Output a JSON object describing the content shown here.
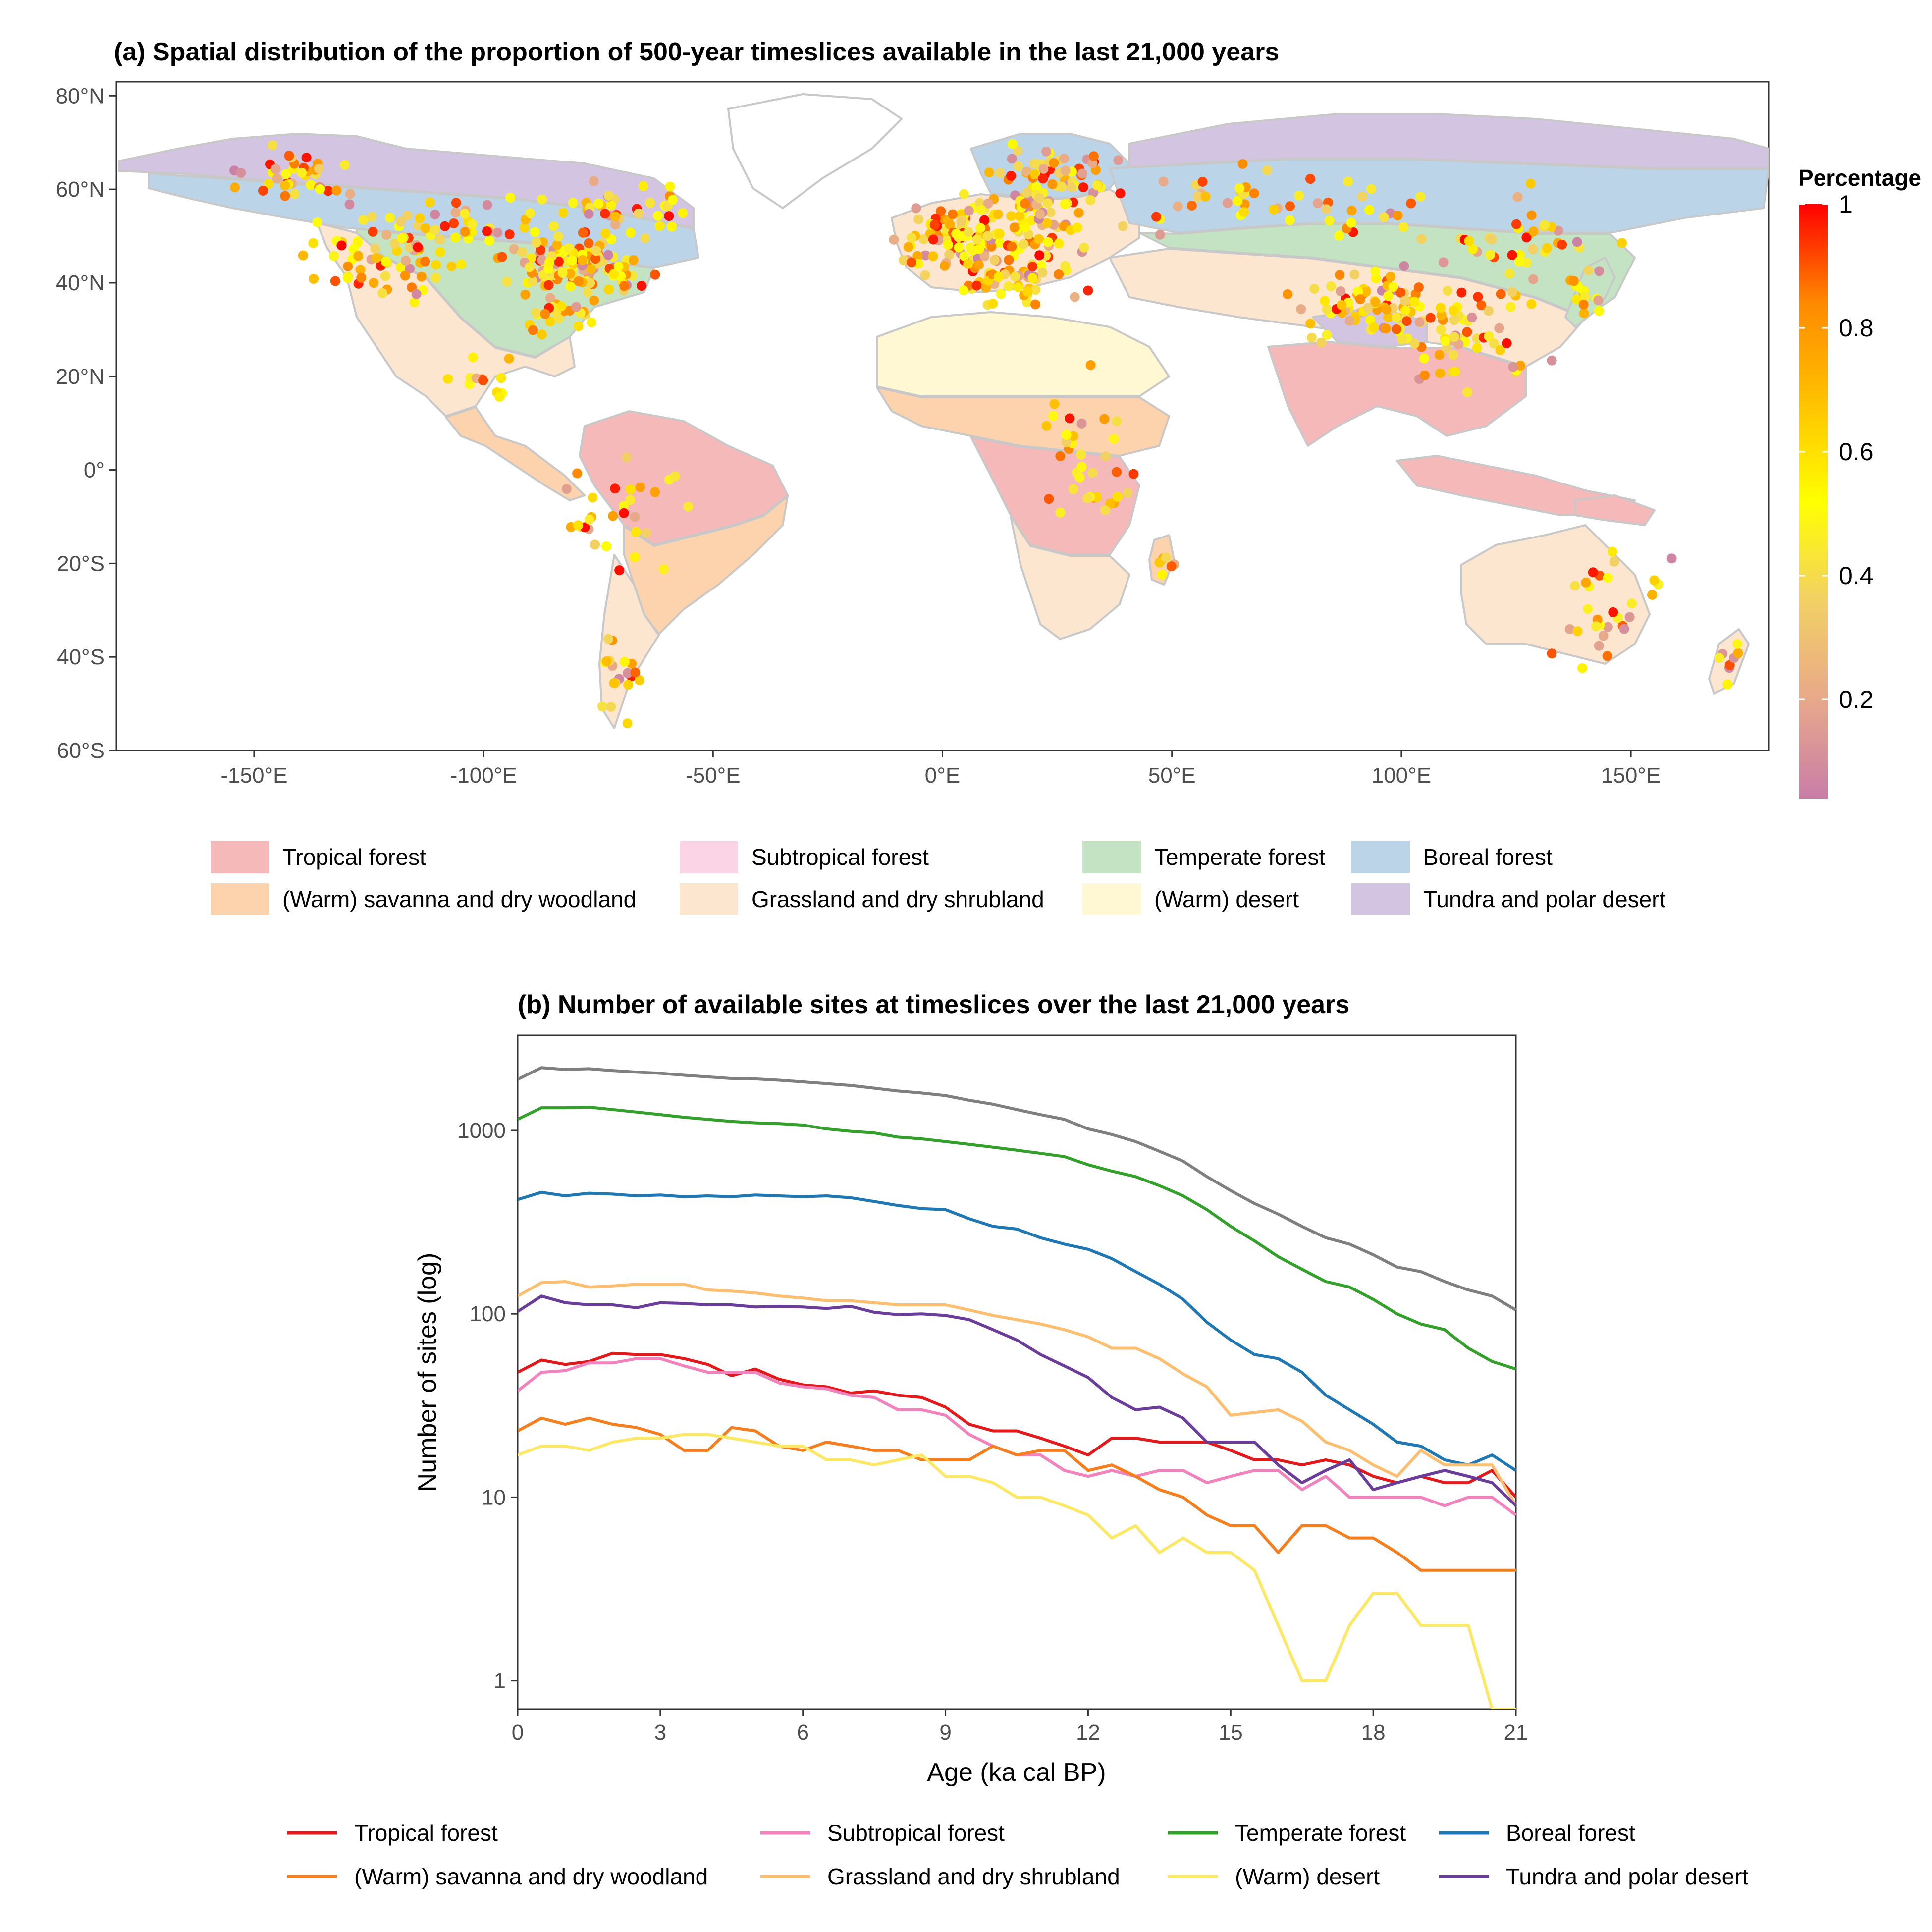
{
  "panel_a": {
    "title": "(a) Spatial distribution of the proportion of 500-year timeslices available in the last 21,000 years",
    "colorbar": {
      "title": "Percentage",
      "ticks": [
        {
          "value": 1,
          "label": "1"
        },
        {
          "value": 0.8,
          "label": "0.8"
        },
        {
          "value": 0.6,
          "label": "0.6"
        },
        {
          "value": 0.4,
          "label": "0.4"
        },
        {
          "value": 0.2,
          "label": "0.2"
        }
      ],
      "stops": [
        "#c97da7",
        "#e8a88a",
        "#f2d064",
        "#ffff00",
        "#ffc200",
        "#ff8a00",
        "#ff0000"
      ]
    },
    "legend": [
      {
        "label": "Tropical forest",
        "color": "#f6b9b9"
      },
      {
        "label": "Subtropical forest",
        "color": "#fbd4e6"
      },
      {
        "label": "Temperate forest",
        "color": "#c3e3c3"
      },
      {
        "label": "Boreal forest",
        "color": "#bcd4e8"
      },
      {
        "label": "(Warm) savanna and dry woodland",
        "color": "#fdd3ad"
      },
      {
        "label": "Grassland and dry shrubland",
        "color": "#fde6cf"
      },
      {
        "label": "(Warm) desert",
        "color": "#fff8d2"
      },
      {
        "label": "Tundra and polar desert",
        "color": "#d3c5e1"
      }
    ]
  },
  "chart_data": [
    {
      "type": "scatter",
      "title": "(a) Spatial distribution of the proportion of 500-year timeslices available in the last 21,000 years",
      "x_axis": {
        "range": [
          -180,
          180
        ],
        "ticks": [
          {
            "value": -150,
            "label": "-150°E"
          },
          {
            "value": -100,
            "label": "-100°E"
          },
          {
            "value": -50,
            "label": "-50°E"
          },
          {
            "value": 0,
            "label": "0°E"
          },
          {
            "value": 50,
            "label": "50°E"
          },
          {
            "value": 100,
            "label": "100°E"
          },
          {
            "value": 150,
            "label": "150°E"
          }
        ]
      },
      "y_axis": {
        "range": [
          -60,
          83
        ],
        "ticks": [
          {
            "value": 80,
            "label": "80°N"
          },
          {
            "value": 60,
            "label": "60°N"
          },
          {
            "value": 40,
            "label": "40°N"
          },
          {
            "value": 20,
            "label": "20°N"
          },
          {
            "value": 0,
            "label": "0°"
          },
          {
            "value": -20,
            "label": "20°S"
          },
          {
            "value": -40,
            "label": "40°S"
          },
          {
            "value": -60,
            "label": "60°S"
          }
        ]
      },
      "grid": false,
      "color_scale": "Percentage",
      "point_clusters": [
        {
          "lon": -120,
          "lat": 45,
          "sd": [
            12,
            6
          ],
          "n": 70
        },
        {
          "lon": -80,
          "lat": 44,
          "sd": [
            9,
            4
          ],
          "n": 120
        },
        {
          "lon": -140,
          "lat": 63,
          "sd": [
            10,
            4
          ],
          "n": 40
        },
        {
          "lon": -100,
          "lat": 52,
          "sd": [
            14,
            5
          ],
          "n": 40
        },
        {
          "lon": -70,
          "lat": 55,
          "sd": [
            10,
            5
          ],
          "n": 35
        },
        {
          "lon": -85,
          "lat": 33,
          "sd": [
            6,
            3
          ],
          "n": 25
        },
        {
          "lon": -100,
          "lat": 19,
          "sd": [
            6,
            3
          ],
          "n": 12
        },
        {
          "lon": -70,
          "lat": -10,
          "sd": [
            10,
            10
          ],
          "n": 30
        },
        {
          "lon": -70,
          "lat": -45,
          "sd": [
            3,
            6
          ],
          "n": 20
        },
        {
          "lon": 10,
          "lat": 50,
          "sd": [
            12,
            6
          ],
          "n": 180
        },
        {
          "lon": 25,
          "lat": 62,
          "sd": [
            10,
            5
          ],
          "n": 70
        },
        {
          "lon": 15,
          "lat": 40,
          "sd": [
            10,
            3
          ],
          "n": 40
        },
        {
          "lon": 70,
          "lat": 57,
          "sd": [
            25,
            5
          ],
          "n": 50
        },
        {
          "lon": 95,
          "lat": 35,
          "sd": [
            12,
            5
          ],
          "n": 80
        },
        {
          "lon": 115,
          "lat": 30,
          "sd": [
            10,
            8
          ],
          "n": 60
        },
        {
          "lon": 125,
          "lat": 50,
          "sd": [
            15,
            8
          ],
          "n": 40
        },
        {
          "lon": 140,
          "lat": 37,
          "sd": [
            4,
            4
          ],
          "n": 15
        },
        {
          "lon": 30,
          "lat": 0,
          "sd": [
            8,
            12
          ],
          "n": 35
        },
        {
          "lon": 145,
          "lat": -30,
          "sd": [
            8,
            8
          ],
          "n": 30
        },
        {
          "lon": 172,
          "lat": -42,
          "sd": [
            3,
            3
          ],
          "n": 8
        },
        {
          "lon": 48,
          "lat": -20,
          "sd": [
            2,
            3
          ],
          "n": 6
        }
      ]
    },
    {
      "type": "line",
      "title": "(b) Number of available sites at timeslices over the last 21,000 years",
      "xlabel": "Age (ka cal BP)",
      "ylabel": "Number of sites (log)",
      "xlim": [
        0,
        21
      ],
      "ylim": [
        0.7,
        3300
      ],
      "y_scale": "log",
      "x_ticks": [
        0,
        3,
        6,
        9,
        12,
        15,
        18,
        21
      ],
      "y_ticks": [
        {
          "value": 1,
          "label": "1"
        },
        {
          "value": 10,
          "label": "10"
        },
        {
          "value": 100,
          "label": "100"
        },
        {
          "value": 1000,
          "label": "1000"
        }
      ],
      "grid": false,
      "legend_position": "bottom",
      "x": [
        0,
        0.5,
        1,
        1.5,
        2,
        2.5,
        3,
        3.5,
        4,
        4.5,
        5,
        5.5,
        6,
        6.5,
        7,
        7.5,
        8,
        8.5,
        9,
        9.5,
        10,
        10.5,
        11,
        11.5,
        12,
        12.5,
        13,
        13.5,
        14,
        14.5,
        15,
        15.5,
        16,
        16.5,
        17,
        17.5,
        18,
        18.5,
        19,
        19.5,
        20,
        20.5,
        21
      ],
      "total": {
        "color": "#7f7f7f",
        "values": [
          1900,
          2200,
          2150,
          2170,
          2120,
          2080,
          2050,
          2000,
          1960,
          1920,
          1910,
          1880,
          1840,
          1800,
          1760,
          1700,
          1640,
          1600,
          1550,
          1460,
          1390,
          1300,
          1220,
          1150,
          1020,
          950,
          870,
          770,
          680,
          560,
          470,
          400,
          350,
          300,
          260,
          240,
          210,
          180,
          170,
          150,
          135,
          125,
          105
        ]
      },
      "series": [
        {
          "name": "Tropical forest",
          "color": "#e31a1c",
          "values": [
            48,
            56,
            53,
            55,
            61,
            60,
            60,
            57,
            53,
            46,
            50,
            44,
            41,
            40,
            37,
            38,
            36,
            35,
            31,
            25,
            23,
            23,
            21,
            19,
            17,
            21,
            21,
            20,
            20,
            20,
            18,
            16,
            16,
            15,
            16,
            15,
            13,
            12,
            13,
            12,
            12,
            14,
            10
          ]
        },
        {
          "name": "Subtropical forest",
          "color": "#f282bc",
          "values": [
            38,
            48,
            49,
            54,
            54,
            57,
            57,
            52,
            48,
            48,
            48,
            42,
            40,
            39,
            36,
            35,
            30,
            30,
            28,
            22,
            19,
            17,
            17,
            14,
            13,
            14,
            13,
            14,
            14,
            12,
            13,
            14,
            14,
            11,
            13,
            10,
            10,
            10,
            10,
            9,
            10,
            10,
            8
          ]
        },
        {
          "name": "Temperate forest",
          "color": "#33a02c",
          "values": [
            1150,
            1330,
            1330,
            1340,
            1300,
            1260,
            1220,
            1180,
            1150,
            1120,
            1100,
            1090,
            1070,
            1020,
            990,
            970,
            920,
            900,
            870,
            840,
            810,
            780,
            750,
            720,
            650,
            600,
            560,
            500,
            440,
            370,
            300,
            250,
            205,
            175,
            150,
            140,
            120,
            100,
            88,
            82,
            65,
            55,
            50
          ]
        },
        {
          "name": "Boreal forest",
          "color": "#1f78b4",
          "values": [
            420,
            460,
            440,
            455,
            450,
            440,
            445,
            435,
            440,
            435,
            445,
            440,
            435,
            440,
            430,
            410,
            390,
            375,
            370,
            330,
            300,
            290,
            260,
            240,
            225,
            200,
            170,
            145,
            120,
            90,
            72,
            60,
            57,
            48,
            36,
            30,
            25,
            20,
            19,
            16,
            15,
            17,
            14
          ]
        },
        {
          "name": "(Warm) savanna and dry woodland",
          "color": "#f57e1e",
          "values": [
            23,
            27,
            25,
            27,
            25,
            24,
            22,
            18,
            18,
            24,
            23,
            19,
            18,
            20,
            19,
            18,
            18,
            16,
            16,
            16,
            19,
            17,
            18,
            18,
            14,
            15,
            13,
            11,
            10,
            8,
            7,
            7,
            5,
            7,
            7,
            6,
            6,
            5,
            4,
            4,
            4,
            4,
            4
          ]
        },
        {
          "name": "Grassland and dry shrubland",
          "color": "#fdbf6f",
          "values": [
            125,
            148,
            150,
            140,
            142,
            145,
            145,
            145,
            135,
            133,
            130,
            125,
            122,
            118,
            118,
            115,
            112,
            112,
            112,
            105,
            98,
            93,
            88,
            82,
            75,
            65,
            65,
            57,
            47,
            40,
            28,
            29,
            30,
            26,
            20,
            18,
            15,
            13,
            18,
            15,
            15,
            15,
            9
          ]
        },
        {
          "name": "(Warm) desert",
          "color": "#fde866",
          "values": [
            17,
            19,
            19,
            18,
            20,
            21,
            21,
            22,
            22,
            21,
            20,
            19,
            19,
            16,
            16,
            15,
            16,
            17,
            13,
            13,
            12,
            10,
            10,
            9,
            8,
            6,
            7,
            5,
            6,
            5,
            5,
            4,
            2,
            1,
            1,
            2,
            3,
            3,
            2,
            2,
            2,
            0.7,
            0.7
          ]
        },
        {
          "name": "Tundra and polar desert",
          "color": "#6a3d9a",
          "values": [
            103,
            125,
            115,
            112,
            112,
            108,
            115,
            114,
            112,
            112,
            109,
            110,
            109,
            107,
            110,
            102,
            99,
            100,
            98,
            93,
            82,
            72,
            60,
            52,
            45,
            35,
            30,
            31,
            27,
            20,
            20,
            20,
            15,
            12,
            14,
            16,
            11,
            12,
            13,
            14,
            13,
            12,
            9
          ]
        }
      ]
    }
  ]
}
